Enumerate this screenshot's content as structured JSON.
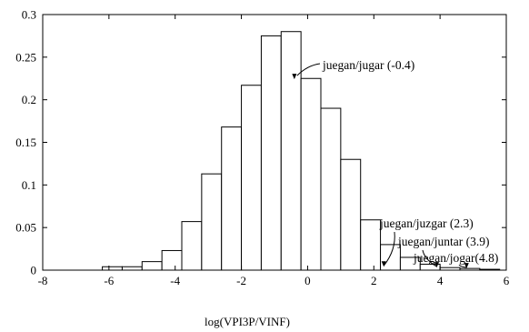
{
  "chart_data": {
    "type": "bar",
    "title": "",
    "xlabel": "log(VPI3P/VINF)",
    "ylabel": "",
    "xlim": [
      -8,
      6
    ],
    "ylim": [
      0,
      0.3
    ],
    "xticks": [
      -8,
      -6,
      -4,
      -2,
      0,
      2,
      4,
      6
    ],
    "xtick_labels": [
      "-8",
      "-6",
      "-4",
      "-2",
      "0",
      "2",
      "4",
      "6"
    ],
    "yticks": [
      0,
      0.05,
      0.1,
      0.15,
      0.2,
      0.25,
      0.3
    ],
    "ytick_labels": [
      "0",
      "0.05",
      "0.1",
      "0.15",
      "0.2",
      "0.25",
      "0.3"
    ],
    "grid": false,
    "bin_width": 0.6,
    "bins": [
      {
        "x0": -8.0,
        "value": 0.0
      },
      {
        "x0": -7.4,
        "value": 0.0
      },
      {
        "x0": -6.8,
        "value": 0.0
      },
      {
        "x0": -6.2,
        "value": 0.004
      },
      {
        "x0": -5.6,
        "value": 0.004
      },
      {
        "x0": -5.0,
        "value": 0.01
      },
      {
        "x0": -4.4,
        "value": 0.023
      },
      {
        "x0": -3.8,
        "value": 0.057
      },
      {
        "x0": -3.2,
        "value": 0.113
      },
      {
        "x0": -2.6,
        "value": 0.168
      },
      {
        "x0": -2.0,
        "value": 0.217
      },
      {
        "x0": -1.4,
        "value": 0.275
      },
      {
        "x0": -0.8,
        "value": 0.28
      },
      {
        "x0": -0.2,
        "value": 0.225
      },
      {
        "x0": 0.4,
        "value": 0.19
      },
      {
        "x0": 1.0,
        "value": 0.13
      },
      {
        "x0": 1.6,
        "value": 0.059
      },
      {
        "x0": 2.2,
        "value": 0.03
      },
      {
        "x0": 2.8,
        "value": 0.015
      },
      {
        "x0": 3.4,
        "value": 0.007
      },
      {
        "x0": 4.0,
        "value": 0.003
      },
      {
        "x0": 4.6,
        "value": 0.002
      },
      {
        "x0": 5.2,
        "value": 0.001
      }
    ],
    "annotations": [
      {
        "text": "juegan/jugar (-0.4)",
        "x": -0.4,
        "y": 0.223
      },
      {
        "text": "juegan/juzgar  (2.3)",
        "x": 2.3,
        "y": 0.003
      },
      {
        "text": "juegan/juntar (3.9)",
        "x": 3.9,
        "y": 0.002
      },
      {
        "text": "juegan/jogar(4.8)",
        "x": 4.8,
        "y": 0.001
      }
    ]
  }
}
